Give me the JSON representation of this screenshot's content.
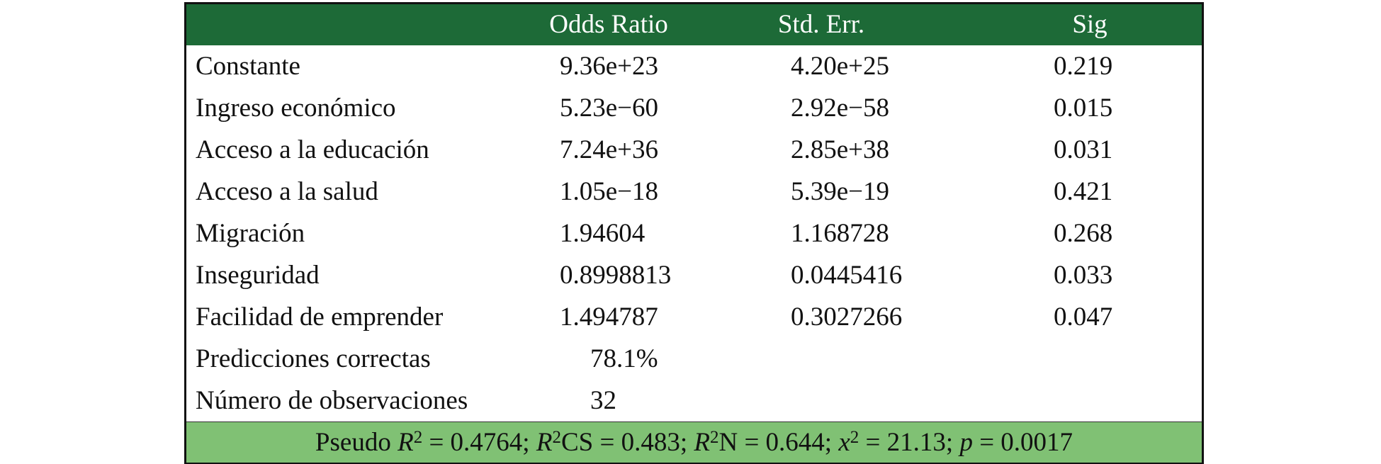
{
  "table": {
    "columns": [
      "Odds Ratio",
      "Std. Err.",
      "Sig"
    ],
    "rows": [
      {
        "label": "Constante",
        "cells": [
          "9.36e+23",
          "4.20e+25",
          "0.219"
        ]
      },
      {
        "label": "Ingreso económico",
        "cells": [
          "5.23e−60",
          "2.92e−58",
          "0.015"
        ]
      },
      {
        "label": "Acceso a la educación",
        "cells": [
          "7.24e+36",
          "2.85e+38",
          "0.031"
        ]
      },
      {
        "label": "Acceso a la salud",
        "cells": [
          "1.05e−18",
          "5.39e−19",
          "0.421"
        ]
      },
      {
        "label": "Migración",
        "cells": [
          "1.94604",
          "1.168728",
          "0.268"
        ]
      },
      {
        "label": "Inseguridad",
        "cells": [
          "0.8998813",
          "0.0445416",
          "0.033"
        ]
      },
      {
        "label": "Facilidad de emprender",
        "cells": [
          "1.494787",
          "0.3027266",
          "0.047"
        ]
      }
    ],
    "summary": [
      {
        "label": "Predicciones correctas",
        "value": "78.1%"
      },
      {
        "label": "Número de observaciones",
        "value": "32"
      }
    ],
    "footer": [
      "Pseudo ",
      "R",
      "2",
      " = 0.4764; ",
      "R",
      "2",
      "CS = 0.483; ",
      "R",
      "2",
      "N = 0.644; ",
      "x",
      "2",
      " = 21.13; ",
      "p",
      " = 0.0017"
    ]
  }
}
